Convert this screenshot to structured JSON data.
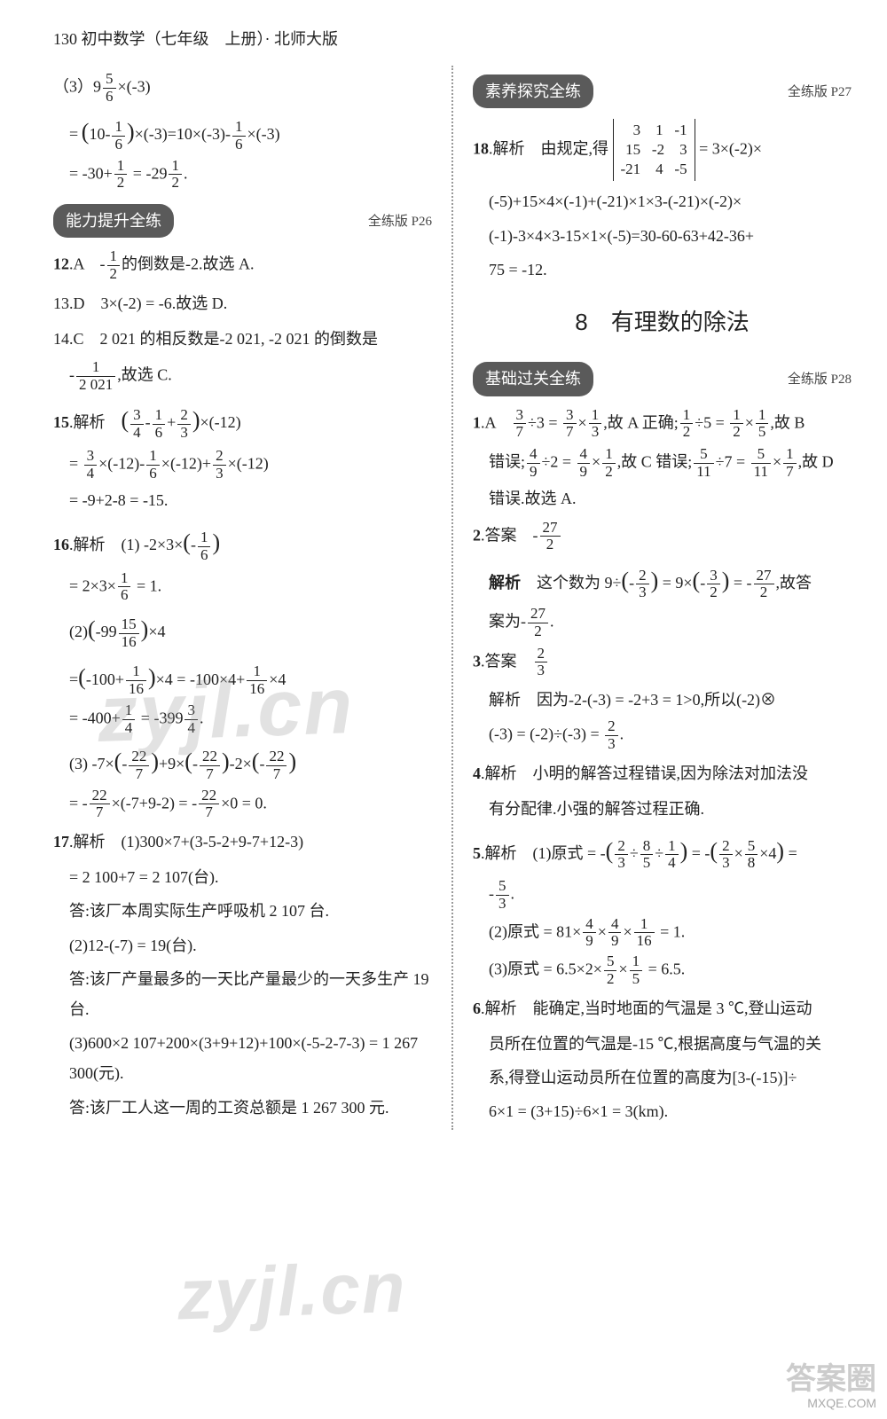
{
  "header": "130 初中数学（七年级　上册）· 北师大版",
  "watermark": "zyjl.cn",
  "left": {
    "top_block": {
      "line1": "（3）9 (5/6)×(-3)",
      "line2": "=(10-(1/6))×(-3)=10×(-3)-(1/6)×(-3)",
      "line3": "= -30+(1/2) = -29 (1/2)."
    },
    "pill1": "能力提升全练",
    "pill1_ref": "全练版 P26",
    "q12": "12.A　-(1/2)的倒数是-2.故选 A.",
    "q13": "13.D　3×(-2) = -6.故选 D.",
    "q14a": "14.C　2 021 的相反数是-2 021, -2 021 的倒数是",
    "q14b": "-(1/2 021),故选 C.",
    "q15a": "15.解析　((3/4)-(1/6)+(2/3))×(-12)",
    "q15b": "= (3/4)×(-12)-(1/6)×(-12)+(2/3)×(-12)",
    "q15c": "= -9+2-8 = -15.",
    "q16a": "16.解析　(1) -2×3×(-(1/6))",
    "q16b": "= 2×3×(1/6) = 1.",
    "q16c": "(2)(-99 (15/16))×4",
    "q16d": "=(-100+(1/16))×4 = -100×4+(1/16)×4",
    "q16e": "= -400+(1/4) = -399 (3/4).",
    "q16f": "(3) -7×(-(22/7))+9×(-(22/7))-2×(-(22/7))",
    "q16g": "= -(22/7)×(-7+9-2) = -(22/7)×0 = 0.",
    "q17a": "17.解析　(1)300×7+(3-5-2+9-7+12-3)",
    "q17b": "= 2 100+7 = 2 107(台).",
    "q17c": "答:该厂本周实际生产呼吸机 2 107 台.",
    "q17d": "(2)12-(-7) = 19(台).",
    "q17e": "答:该厂产量最多的一天比产量最少的一天多生产 19 台.",
    "q17f": "(3)600×2 107+200×(3+9+12)+100×(-5-2-7-3) = 1 267 300(元).",
    "q17g": "答:该厂工人这一周的工资总额是 1 267 300 元."
  },
  "right": {
    "pill2": "素养探究全练",
    "pill2_ref": "全练版 P27",
    "q18a": "18.解析　由规定,得",
    "matrix": [
      "  3    1   -1",
      " 15   -2    3",
      "-21    4   -5"
    ],
    "q18a_tail": " = 3×(-2)×",
    "q18b": "(-5)+15×4×(-1)+(-21)×1×3-(-21)×(-2)×",
    "q18c": "(-1)-3×4×3-15×1×(-5)=30-60-63+42-36+",
    "q18d": "75 = -12.",
    "title": "8　有理数的除法",
    "pill3": "基础过关全练",
    "pill3_ref": "全练版 P28",
    "r1a": "1.A　(3/7)÷3 = (3/7)×(1/3),故 A 正确;(1/2)÷5 = (1/2)×(1/5),故 B",
    "r1b": "错误;(4/9)÷2 = (4/9)×(1/2),故 C 错误;(5/11)÷7 = (5/11)×(1/7),故 D",
    "r1c": "错误.故选 A.",
    "r2a": "2.答案　-(27/2)",
    "r2b": "解析　这个数为 9÷(-(2/3)) = 9×(-(3/2)) = -(27/2),故答",
    "r2c": "案为-(27/2).",
    "r3a": "3.答案　(2/3)",
    "r3b": "解析　因为-2-(-3) = -2+3 = 1>0,所以(-2)⊗",
    "r3c": "(-3) = (-2)÷(-3) = (2/3).",
    "r4a": "4.解析　小明的解答过程错误,因为除法对加法没",
    "r4b": "有分配律.小强的解答过程正确.",
    "r5a": "5.解析　(1)原式 = -((2/3)÷(8/5)÷(1/4)) = -((2/3)×(5/8)×4) =",
    "r5b": "-(5/3).",
    "r5c": "(2)原式 = 81×(4/9)×(4/9)×(1/16) = 1.",
    "r5d": "(3)原式 = 6.5×2×(5/2)×(1/5) = 6.5.",
    "r6a": "6.解析　能确定,当时地面的气温是 3 ℃,登山运动",
    "r6b": "员所在位置的气温是-15 ℃,根据高度与气温的关",
    "r6c": "系,得登山运动员所在位置的高度为[3-(-15)]÷",
    "r6d": "6×1 = (3+15)÷6×1 = 3(km)."
  },
  "corner": {
    "big": "答案圈",
    "small": "MXQE.COM"
  }
}
